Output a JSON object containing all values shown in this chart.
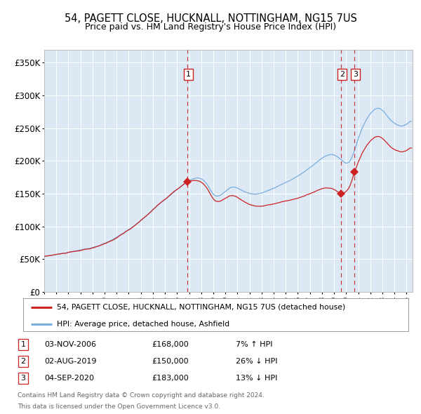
{
  "title": "54, PAGETT CLOSE, HUCKNALL, NOTTINGHAM, NG15 7US",
  "subtitle": "Price paid vs. HM Land Registry's House Price Index (HPI)",
  "legend_property": "54, PAGETT CLOSE, HUCKNALL, NOTTINGHAM, NG15 7US (detached house)",
  "legend_hpi": "HPI: Average price, detached house, Ashfield",
  "footer1": "Contains HM Land Registry data © Crown copyright and database right 2024.",
  "footer2": "This data is licensed under the Open Government Licence v3.0.",
  "transactions": [
    {
      "num": 1,
      "date": "03-NOV-2006",
      "year_dec": 2006.837,
      "price": 168000,
      "pct": 7,
      "dir": "↑"
    },
    {
      "num": 2,
      "date": "02-AUG-2019",
      "year_dec": 2019.581,
      "price": 150000,
      "pct": 26,
      "dir": "↓"
    },
    {
      "num": 3,
      "date": "04-SEP-2020",
      "year_dec": 2020.672,
      "price": 183000,
      "pct": 13,
      "dir": "↓"
    }
  ],
  "vline_color": "#cc2222",
  "property_line_color": "#cc2222",
  "hpi_line_color": "#7aaddc",
  "background_color": "#dce9f5",
  "ylim": [
    0,
    370000
  ],
  "xlim_start": 1995.0,
  "xlim_end": 2025.5,
  "yticks": [
    0,
    50000,
    100000,
    150000,
    200000,
    250000,
    300000,
    350000
  ],
  "ytick_labels": [
    "£0",
    "£50K",
    "£100K",
    "£150K",
    "£200K",
    "£250K",
    "£300K",
    "£350K"
  ],
  "xticks": [
    1995,
    1996,
    1997,
    1998,
    1999,
    2000,
    2001,
    2002,
    2003,
    2004,
    2005,
    2006,
    2007,
    2008,
    2009,
    2010,
    2011,
    2012,
    2013,
    2014,
    2015,
    2016,
    2017,
    2018,
    2019,
    2020,
    2021,
    2022,
    2023,
    2024,
    2025
  ],
  "hpi_knots_x": [
    1995.0,
    1996.0,
    1997.0,
    1998.5,
    2000.0,
    2001.5,
    2003.0,
    2004.5,
    2006.0,
    2007.5,
    2008.5,
    2009.0,
    2010.5,
    2011.5,
    2012.5,
    2013.5,
    2015.0,
    2016.5,
    2017.5,
    2018.5,
    2019.5,
    2020.3,
    2021.0,
    2022.0,
    2022.8,
    2023.5,
    2024.0,
    2025.3
  ],
  "hpi_knots_y": [
    54000,
    57000,
    60000,
    65000,
    73000,
    88000,
    108000,
    133000,
    155000,
    172000,
    162000,
    148000,
    158000,
    152000,
    148000,
    153000,
    166000,
    182000,
    196000,
    208000,
    202000,
    198000,
    232000,
    270000,
    278000,
    264000,
    255000,
    258000
  ]
}
